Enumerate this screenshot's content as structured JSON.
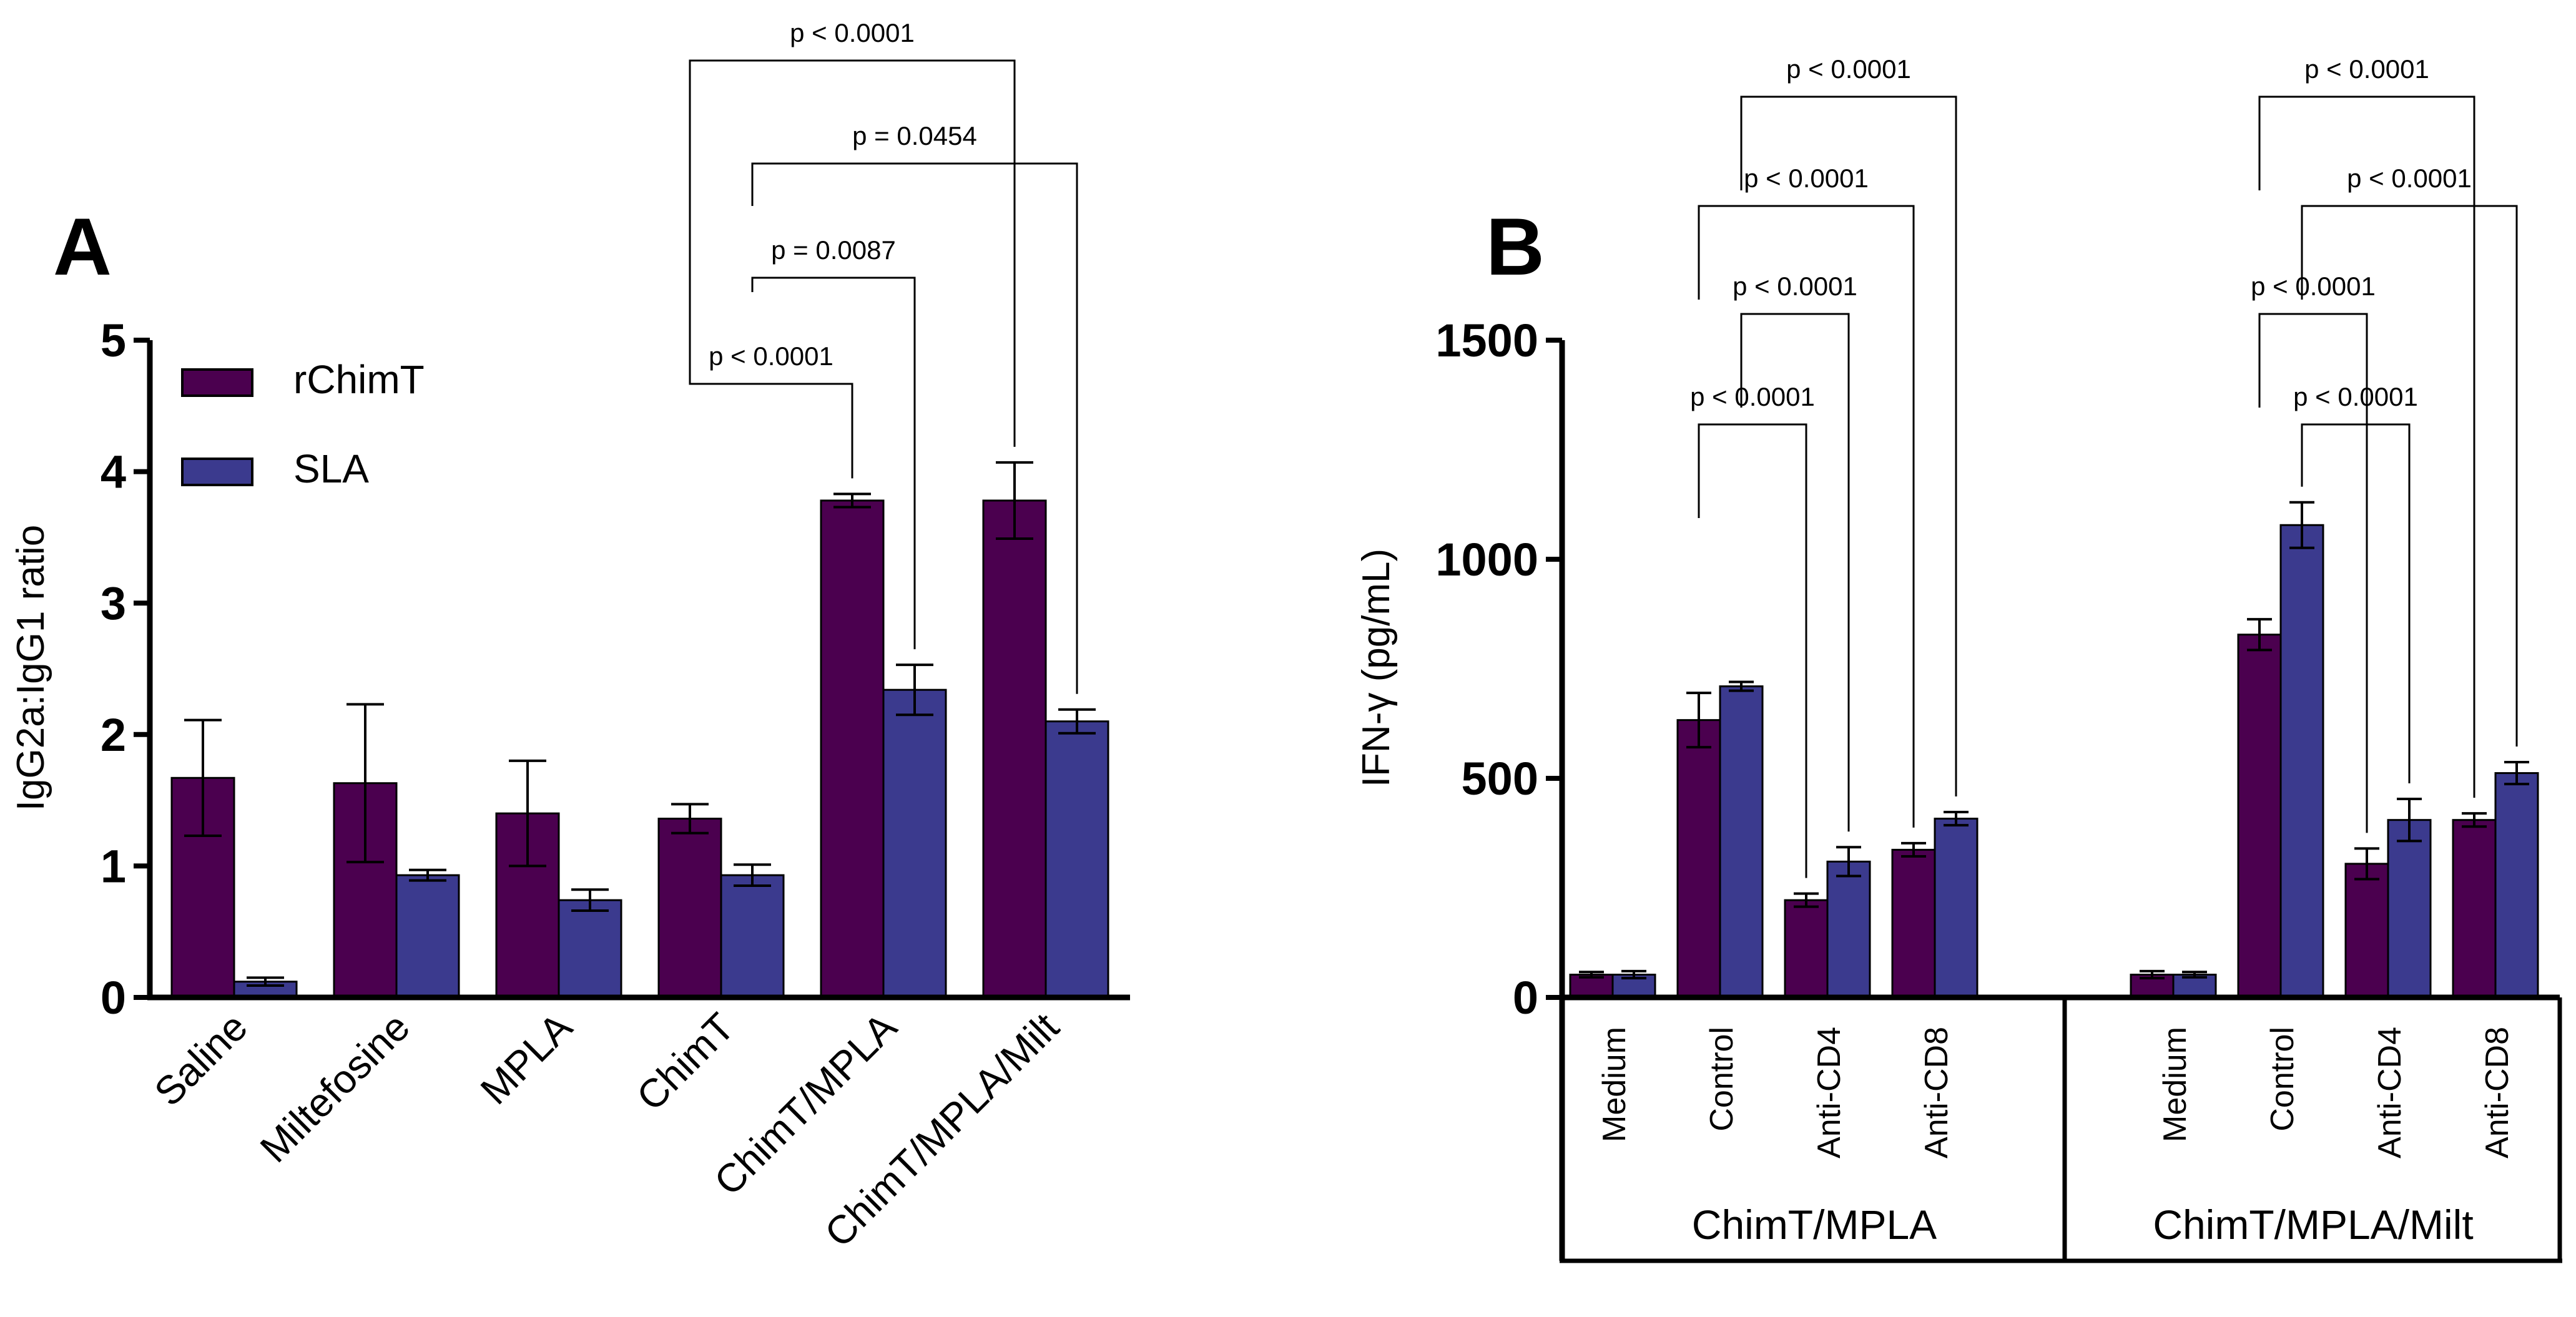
{
  "colors": {
    "rChimT": "#4b004f",
    "SLA": "#3b3a8e",
    "axis": "#000000",
    "bar_outline": "#000000"
  },
  "chart_data": [
    {
      "type": "bar",
      "panel_label": "A",
      "title": "",
      "xlabel": "",
      "ylabel": "IgG2a:IgG1 ratio",
      "ylim": [
        0,
        5
      ],
      "yticks": [
        "0",
        "1",
        "2",
        "3",
        "4",
        "5"
      ],
      "categories": [
        "Saline",
        "Miltefosine",
        "MPLA",
        "ChimT",
        "ChimT/MPLA",
        "ChimT/MPLA/Milt"
      ],
      "legend": {
        "placement": "top-left",
        "entries": [
          "rChimT",
          "SLA"
        ]
      },
      "series": [
        {
          "name": "rChimT",
          "values": [
            1.67,
            1.63,
            1.4,
            1.36,
            3.78,
            3.78
          ],
          "errors": [
            0.44,
            0.6,
            0.4,
            0.11,
            0.05,
            0.29
          ]
        },
        {
          "name": "SLA",
          "values": [
            0.12,
            0.93,
            0.74,
            0.93,
            2.34,
            2.1
          ],
          "errors": [
            0.03,
            0.04,
            0.08,
            0.08,
            0.19,
            0.09
          ]
        }
      ],
      "comparisons": [
        {
          "label": "p < 0.0001",
          "from": [
            3,
            0
          ],
          "to": [
            4,
            0
          ]
        },
        {
          "label": "p = 0.0087",
          "from": [
            3,
            1
          ],
          "to": [
            4,
            1
          ]
        },
        {
          "label": "p = 0.0454",
          "from": [
            3,
            1
          ],
          "to": [
            5,
            1
          ]
        },
        {
          "label": "p < 0.0001",
          "from": [
            3,
            0
          ],
          "to": [
            5,
            0
          ]
        }
      ]
    },
    {
      "type": "bar",
      "panel_label": "B",
      "title": "",
      "xlabel": "",
      "ylabel": "IFN-γ (pg/mL)",
      "ylim": [
        0,
        1500
      ],
      "yticks": [
        "0",
        "500",
        "1000",
        "1500"
      ],
      "groups": [
        {
          "name": "ChimT/MPLA",
          "categories": [
            "Medium",
            "Control",
            "Anti-CD4",
            "Anti-CD8"
          ]
        },
        {
          "name": "ChimT/MPLA/Milt",
          "categories": [
            "Medium",
            "Control",
            "Anti-CD4",
            "Anti-CD8"
          ]
        }
      ],
      "series": [
        {
          "name": "rChimT",
          "values": [
            52,
            633,
            222,
            337,
            52,
            828,
            305,
            405
          ],
          "errors": [
            6,
            62,
            15,
            15,
            8,
            35,
            35,
            15
          ]
        },
        {
          "name": "SLA",
          "values": [
            52,
            710,
            310,
            408,
            52,
            1078,
            405,
            512
          ],
          "errors": [
            8,
            10,
            33,
            15,
            6,
            52,
            48,
            25
          ]
        }
      ],
      "comparisons": [
        {
          "label": "p < 0.0001",
          "group": 0,
          "from": 1,
          "to": 2
        },
        {
          "label": "p < 0.0001",
          "group": 0,
          "from": 1,
          "to": 2
        },
        {
          "label": "p < 0.0001",
          "group": 0,
          "from": 1,
          "to": 3
        },
        {
          "label": "p < 0.0001",
          "group": 0,
          "from": 1,
          "to": 3
        },
        {
          "label": "p < 0.0001",
          "group": 1,
          "from": 1,
          "to": 2
        },
        {
          "label": "p < 0.0001",
          "group": 1,
          "from": 1,
          "to": 2
        },
        {
          "label": "p < 0.0001",
          "group": 1,
          "from": 1,
          "to": 3
        },
        {
          "label": "p < 0.0001",
          "group": 1,
          "from": 1,
          "to": 3
        }
      ]
    }
  ]
}
